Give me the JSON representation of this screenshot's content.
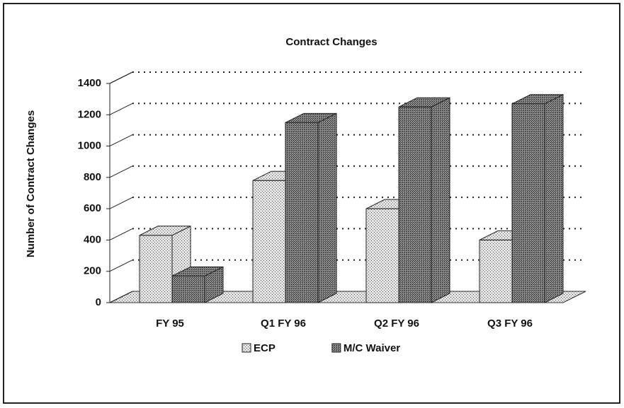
{
  "chart_data": {
    "type": "bar3d",
    "title": "Contract Changes",
    "y_label": "Number of Contract Changes",
    "categories": [
      "FY 95",
      "Q1 FY 96",
      "Q2 FY 96",
      "Q3 FY 96"
    ],
    "series": [
      {
        "name": "ECP",
        "color": "#bdbdbd",
        "values": [
          430,
          780,
          600,
          400
        ]
      },
      {
        "name": "M/C Waiver",
        "color": "#6e6e6e",
        "values": [
          170,
          1150,
          1250,
          1270
        ]
      }
    ],
    "ylim": [
      0,
      1400
    ],
    "yticks": [
      0,
      200,
      400,
      600,
      800,
      1000,
      1200,
      1400
    ],
    "grid": true
  }
}
